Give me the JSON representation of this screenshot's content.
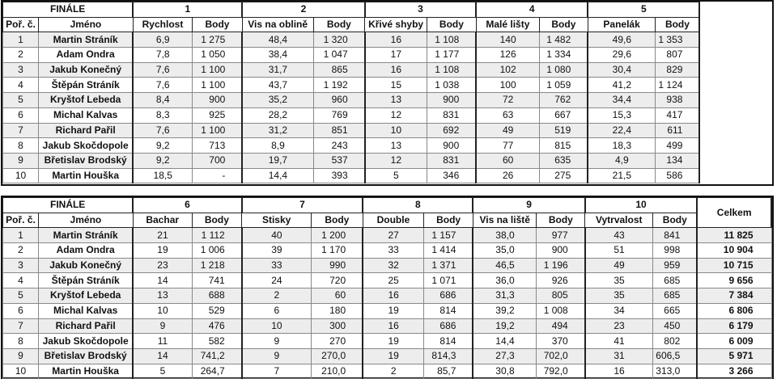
{
  "top": {
    "title": "FINÁLE",
    "col_rank": "Poř. č.",
    "col_name": "Jméno",
    "groups": [
      {
        "number": "1",
        "measure": "Rychlost",
        "points": "Body"
      },
      {
        "number": "2",
        "measure": "Vis na oblině",
        "points": "Body"
      },
      {
        "number": "3",
        "measure": "Křivé shyby",
        "points": "Body"
      },
      {
        "number": "4",
        "measure": "Malé lišty",
        "points": "Body"
      },
      {
        "number": "5",
        "measure": "Panelák",
        "points": "Body"
      }
    ],
    "rows": [
      {
        "rank": "1",
        "name": "Martin Stráník",
        "cells": [
          "6,9",
          "1 275",
          "48,4",
          "1 320",
          "16",
          "1 108",
          "140",
          "1 482",
          "49,6",
          "1 353"
        ]
      },
      {
        "rank": "2",
        "name": "Adam Ondra",
        "cells": [
          "7,8",
          "1 050",
          "38,4",
          "1 047",
          "17",
          "1 177",
          "126",
          "1 334",
          "29,6",
          "807"
        ]
      },
      {
        "rank": "3",
        "name": "Jakub Konečný",
        "cells": [
          "7,6",
          "1 100",
          "31,7",
          "865",
          "16",
          "1 108",
          "102",
          "1 080",
          "30,4",
          "829"
        ]
      },
      {
        "rank": "4",
        "name": "Štěpán Stráník",
        "cells": [
          "7,6",
          "1 100",
          "43,7",
          "1 192",
          "15",
          "1 038",
          "100",
          "1 059",
          "41,2",
          "1 124"
        ]
      },
      {
        "rank": "5",
        "name": "Kryštof Lebeda",
        "cells": [
          "8,4",
          "900",
          "35,2",
          "960",
          "13",
          "900",
          "72",
          "762",
          "34,4",
          "938"
        ]
      },
      {
        "rank": "6",
        "name": "Michal Kalvas",
        "cells": [
          "8,3",
          "925",
          "28,2",
          "769",
          "12",
          "831",
          "63",
          "667",
          "15,3",
          "417"
        ]
      },
      {
        "rank": "7",
        "name": "Richard Pařil",
        "cells": [
          "7,6",
          "1 100",
          "31,2",
          "851",
          "10",
          "692",
          "49",
          "519",
          "22,4",
          "611"
        ]
      },
      {
        "rank": "8",
        "name": "Jakub Skočdopole",
        "cells": [
          "9,2",
          "713",
          "8,9",
          "243",
          "13",
          "900",
          "77",
          "815",
          "18,3",
          "499"
        ]
      },
      {
        "rank": "9",
        "name": "Břetislav Brodský",
        "cells": [
          "9,2",
          "700",
          "19,7",
          "537",
          "12",
          "831",
          "60",
          "635",
          "4,9",
          "134"
        ]
      },
      {
        "rank": "10",
        "name": "Martin Houška",
        "cells": [
          "18,5",
          "-",
          "14,4",
          "393",
          "5",
          "346",
          "26",
          "275",
          "21,5",
          "586"
        ]
      }
    ]
  },
  "bottom": {
    "title": "FINÁLE",
    "col_rank": "Poř. č.",
    "col_name": "Jméno",
    "col_total": "Celkem",
    "groups": [
      {
        "number": "6",
        "measure": "Bachar",
        "points": "Body"
      },
      {
        "number": "7",
        "measure": "Stisky",
        "points": "Body"
      },
      {
        "number": "8",
        "measure": "Double",
        "points": "Body"
      },
      {
        "number": "9",
        "measure": "Vis na liště",
        "points": "Body"
      },
      {
        "number": "10",
        "measure": "Vytrvalost",
        "points": "Body"
      }
    ],
    "rows": [
      {
        "rank": "1",
        "name": "Martin Stráník",
        "cells": [
          "21",
          "1 112",
          "40",
          "1 200",
          "27",
          "1 157",
          "38,0",
          "977",
          "43",
          "841"
        ],
        "total": "11 825"
      },
      {
        "rank": "2",
        "name": "Adam Ondra",
        "cells": [
          "19",
          "1 006",
          "39",
          "1 170",
          "33",
          "1 414",
          "35,0",
          "900",
          "51",
          "998"
        ],
        "total": "10 904"
      },
      {
        "rank": "3",
        "name": "Jakub Konečný",
        "cells": [
          "23",
          "1 218",
          "33",
          "990",
          "32",
          "1 371",
          "46,5",
          "1 196",
          "49",
          "959"
        ],
        "total": "10 715"
      },
      {
        "rank": "4",
        "name": "Štěpán Stráník",
        "cells": [
          "14",
          "741",
          "24",
          "720",
          "25",
          "1 071",
          "36,0",
          "926",
          "35",
          "685"
        ],
        "total": "9 656"
      },
      {
        "rank": "5",
        "name": "Kryštof Lebeda",
        "cells": [
          "13",
          "688",
          "2",
          "60",
          "16",
          "686",
          "31,3",
          "805",
          "35",
          "685"
        ],
        "total": "7 384"
      },
      {
        "rank": "6",
        "name": "Michal Kalvas",
        "cells": [
          "10",
          "529",
          "6",
          "180",
          "19",
          "814",
          "39,2",
          "1 008",
          "34",
          "665"
        ],
        "total": "6 806"
      },
      {
        "rank": "7",
        "name": "Richard Pařil",
        "cells": [
          "9",
          "476",
          "10",
          "300",
          "16",
          "686",
          "19,2",
          "494",
          "23",
          "450"
        ],
        "total": "6 179"
      },
      {
        "rank": "8",
        "name": "Jakub Skočdopole",
        "cells": [
          "11",
          "582",
          "9",
          "270",
          "19",
          "814",
          "14,4",
          "370",
          "41",
          "802"
        ],
        "total": "6 009"
      },
      {
        "rank": "9",
        "name": "Břetislav Brodský",
        "cells": [
          "14",
          "741,2",
          "9",
          "270,0",
          "19",
          "814,3",
          "27,3",
          "702,0",
          "31",
          "606,5"
        ],
        "total": "5 971"
      },
      {
        "rank": "10",
        "name": "Martin Houška",
        "cells": [
          "5",
          "264,7",
          "7",
          "210,0",
          "2",
          "85,7",
          "30,8",
          "792,0",
          "16",
          "313,0"
        ],
        "total": "3 266"
      }
    ]
  }
}
